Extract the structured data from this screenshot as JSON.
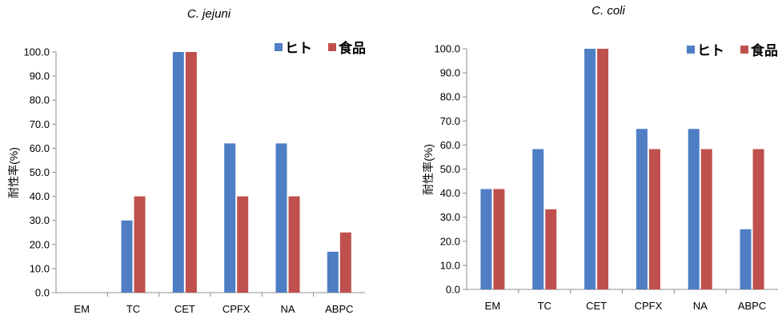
{
  "colors": {
    "human": "#4f7ec4",
    "food": "#c0504d",
    "axis": "#8c8c8c"
  },
  "chart_data": [
    {
      "type": "bar",
      "title": "C. jejuni",
      "ylabel": "耐性率(%)",
      "xlabel": "",
      "ylim": [
        0,
        100
      ],
      "yticks": [
        "0.0",
        "10.0",
        "20.0",
        "30.0",
        "40.0",
        "50.0",
        "60.0",
        "70.0",
        "80.0",
        "90.0",
        "100.0"
      ],
      "grid": false,
      "legend_position": "top-right",
      "categories": [
        "EM",
        "TC",
        "CET",
        "CPFX",
        "NA",
        "ABPC"
      ],
      "series": [
        {
          "name": "ヒト",
          "color": "#4f7ec4",
          "values": [
            0,
            30,
            100,
            62,
            62,
            17
          ]
        },
        {
          "name": "食品",
          "color": "#c0504d",
          "values": [
            0,
            40,
            100,
            40,
            40,
            25
          ]
        }
      ]
    },
    {
      "type": "bar",
      "title": "C. coli",
      "ylabel": "耐性率(%)",
      "xlabel": "",
      "ylim": [
        0,
        100
      ],
      "yticks": [
        "0.0",
        "10.0",
        "20.0",
        "30.0",
        "40.0",
        "50.0",
        "60.0",
        "70.0",
        "80.0",
        "90.0",
        "100.0"
      ],
      "grid": false,
      "legend_position": "top-right",
      "categories": [
        "EM",
        "TC",
        "CET",
        "CPFX",
        "NA",
        "ABPC"
      ],
      "series": [
        {
          "name": "ヒト",
          "color": "#4f7ec4",
          "values": [
            41.7,
            58.3,
            100,
            66.7,
            66.7,
            25
          ]
        },
        {
          "name": "食品",
          "color": "#c0504d",
          "values": [
            41.7,
            33.3,
            100,
            58.3,
            58.3,
            58.3
          ]
        }
      ]
    }
  ]
}
